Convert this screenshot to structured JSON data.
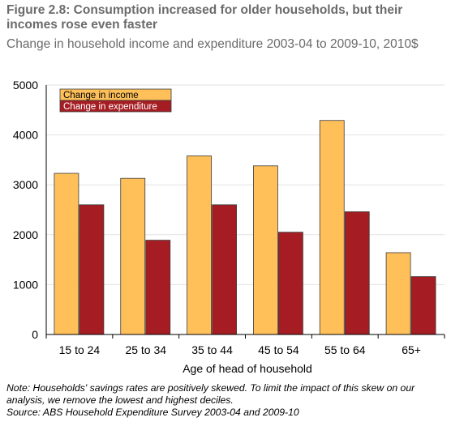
{
  "figure": {
    "title": "Figure 2.8: Consumption increased for older households, but their incomes rose even faster",
    "subtitle": "Change in household income and expenditure 2003-04 to 2009-10, 2010$"
  },
  "chart_data": {
    "type": "bar",
    "categories": [
      "15 to 24",
      "25 to 34",
      "35 to 44",
      "45 to 54",
      "55 to 64",
      "65+"
    ],
    "series": [
      {
        "name": "Change in income",
        "color": "#FFC05A",
        "values": [
          3230,
          3130,
          3580,
          3380,
          4290,
          1640
        ]
      },
      {
        "name": "Change in expenditure",
        "color": "#A51D23",
        "values": [
          2600,
          1890,
          2600,
          2050,
          2460,
          1160
        ]
      }
    ],
    "xlabel": "Age of head of household",
    "ylabel": "",
    "ylim": [
      0,
      5000
    ],
    "yticks": [
      "0",
      "1000",
      "2000",
      "3000",
      "4000",
      "5000"
    ],
    "grid": true,
    "legend_position": "top-left"
  },
  "notes": {
    "note": "Note: Households' savings rates are positively skewed. To limit the impact of this skew on our analysis, we remove the lowest and highest deciles.",
    "source": "Source: ABS Household Expenditure Survey 2003-04 and 2009-10"
  }
}
